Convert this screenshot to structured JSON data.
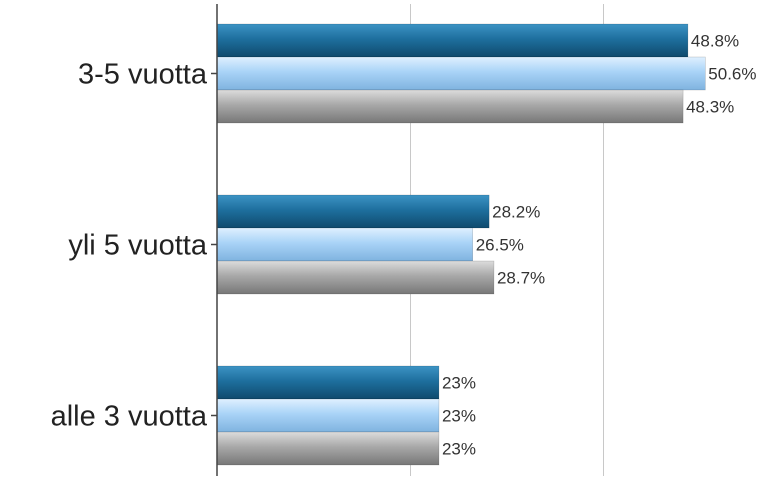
{
  "chart_data": {
    "type": "bar",
    "orientation": "horizontal",
    "title": "",
    "xlabel": "",
    "ylabel": "",
    "categories": [
      "3-5 vuotta",
      "yli 5 vuotta",
      "alle 3 vuotta"
    ],
    "series": [
      {
        "values": [
          48.8,
          28.2,
          23
        ],
        "labels": [
          "48.8%",
          "28.2%",
          "23%"
        ],
        "color": "#1e6f9e"
      },
      {
        "values": [
          50.6,
          26.5,
          23
        ],
        "labels": [
          "50.6%",
          "26.5%",
          "23%"
        ],
        "color": "#a9d3f7"
      },
      {
        "values": [
          48.3,
          28.7,
          23
        ],
        "labels": [
          "48.3%",
          "28.7%",
          "23%"
        ],
        "color": "#a8a8a8"
      }
    ],
    "xlim": [
      0,
      60
    ],
    "grid": true,
    "legend": "none"
  }
}
